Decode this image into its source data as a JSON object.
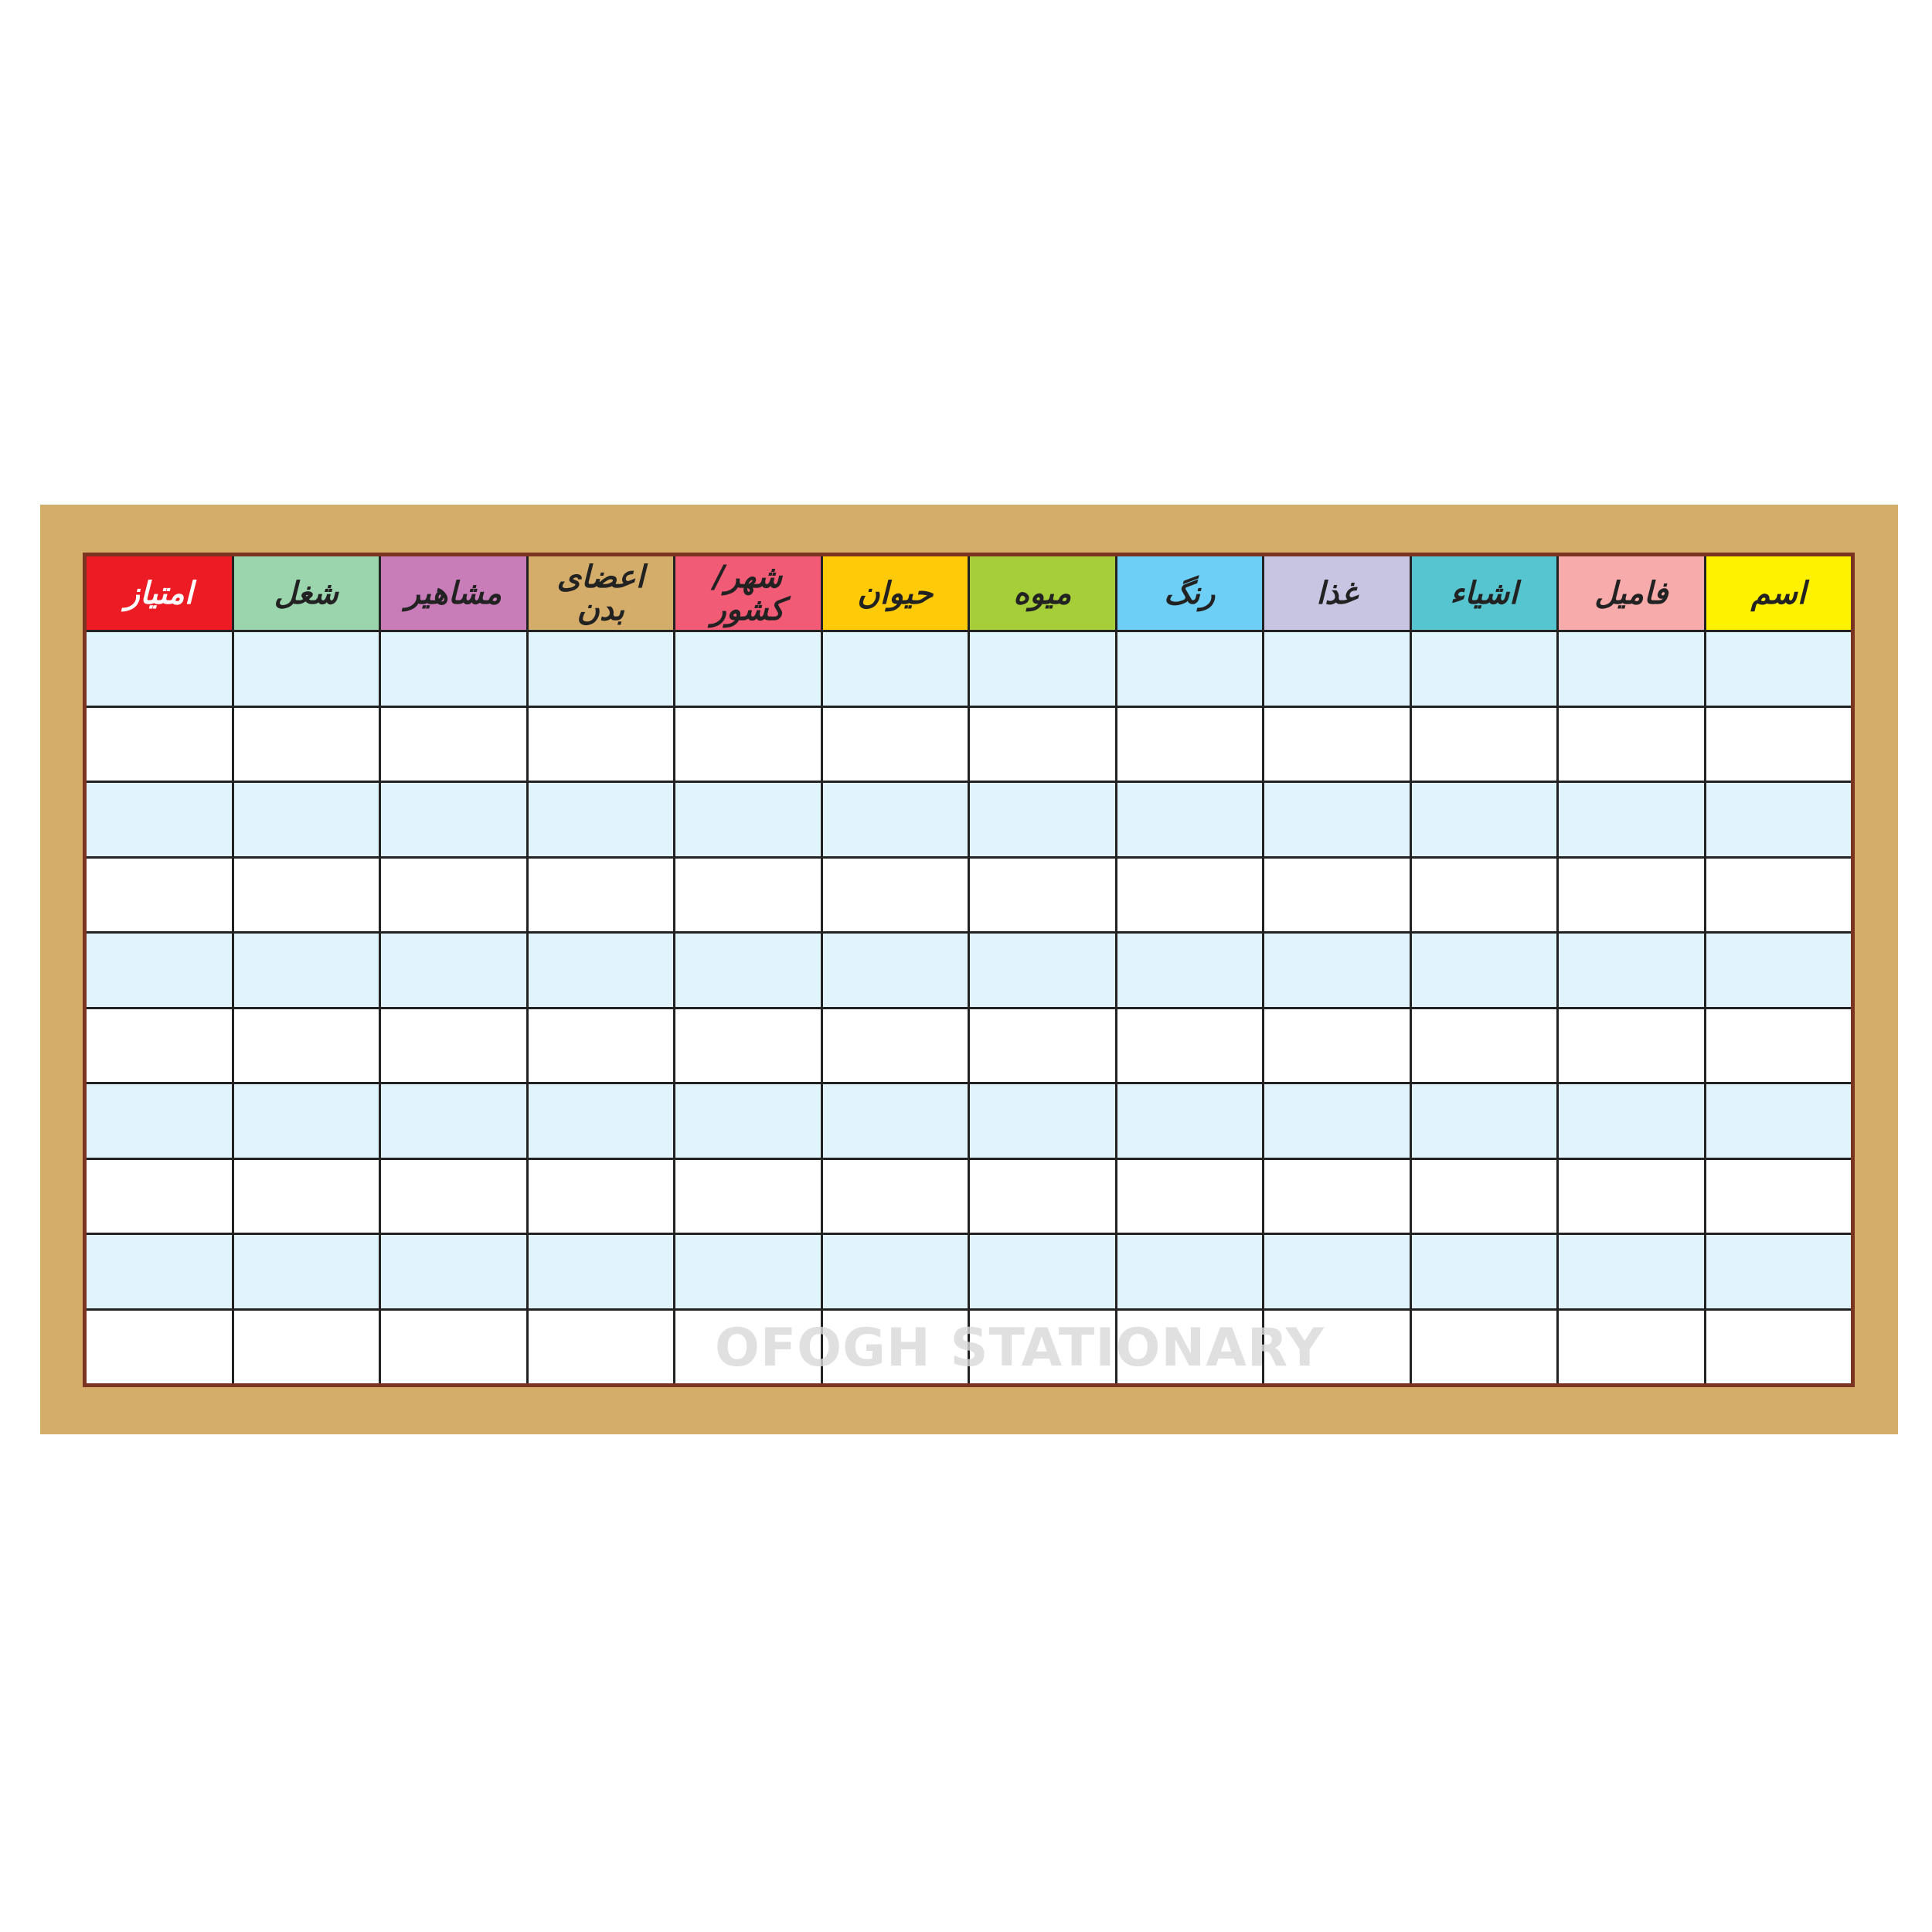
{
  "headers": [
    {
      "label": "اسم",
      "color": "#fff200",
      "text_color": "#222222"
    },
    {
      "label": "فامیل",
      "color": "#f7abab",
      "text_color": "#222222"
    },
    {
      "label": "اشیاء",
      "color": "#56c5d0",
      "text_color": "#222222"
    },
    {
      "label": "غذا",
      "color": "#c8c5e3",
      "text_color": "#222222"
    },
    {
      "label": "رنگ",
      "color": "#6dcff6",
      "text_color": "#222222"
    },
    {
      "label": "میوه",
      "color": "#a6ce39",
      "text_color": "#222222"
    },
    {
      "label": "حیوان",
      "color": "#ffcb08",
      "text_color": "#222222"
    },
    {
      "label": "شهر/کشور",
      "color": "#f15b75",
      "text_color": "#222222"
    },
    {
      "label": "اعضای بدن",
      "color": "#d3ad69",
      "text_color": "#222222"
    },
    {
      "label": "مشاهیر",
      "color": "#c87db8",
      "text_color": "#222222"
    },
    {
      "label": "شغل",
      "color": "#9ad5ae",
      "text_color": "#222222"
    },
    {
      "label": "امتیاز",
      "color": "#ed1c24",
      "text_color": "#ffffff"
    }
  ],
  "row_count": 10,
  "colors": {
    "board": "#d3ad69",
    "frame": "#7b3420",
    "row_alt": "#e1f3fd",
    "row": "#ffffff"
  },
  "watermark": "OFOGH STATIONARY"
}
